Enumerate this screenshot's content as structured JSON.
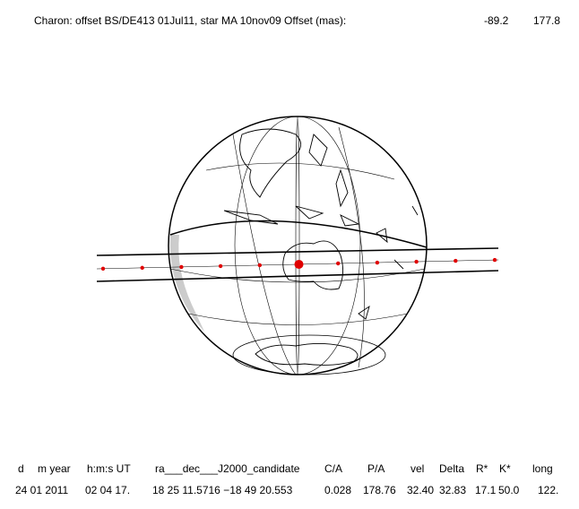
{
  "header": {
    "title": "Charon: offset BS/DE413 01Jul11, star MA 10nov09  Offset (mas):",
    "offset_1": "-89.2",
    "offset_2": "177.8"
  },
  "table": {
    "headers": [
      "d",
      "m year",
      "h:m:s UT",
      "ra___dec___J2000_candidate",
      "C/A",
      "P/A",
      "vel",
      "Delta",
      "R*",
      "K*",
      "long"
    ],
    "values": [
      "24 01 2011",
      "02 04 17.",
      "18 25 11.5716 −18 49  20.553",
      "0.028",
      "178.76",
      "32.40",
      "32.83",
      "17.1",
      "50.0",
      "122."
    ]
  }
}
